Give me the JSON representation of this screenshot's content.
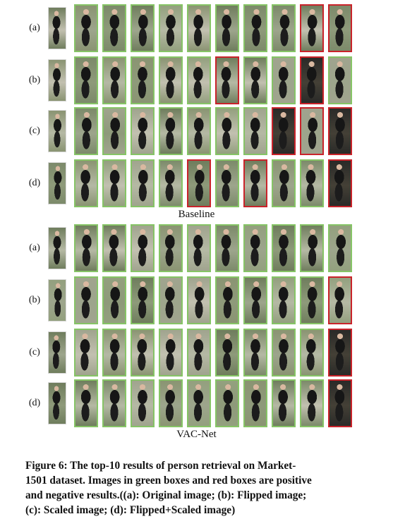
{
  "panels": [
    {
      "title": "Baseline",
      "rows": [
        {
          "label": "(a)",
          "results": [
            "pos",
            "pos",
            "pos",
            "pos",
            "pos",
            "pos",
            "pos",
            "pos",
            "neg",
            "neg"
          ]
        },
        {
          "label": "(b)",
          "results": [
            "pos",
            "pos",
            "pos",
            "pos",
            "pos",
            "neg",
            "pos",
            "pos",
            "neg",
            "pos"
          ]
        },
        {
          "label": "(c)",
          "results": [
            "pos",
            "pos",
            "pos",
            "pos",
            "pos",
            "pos",
            "pos",
            "neg",
            "neg",
            "neg"
          ]
        },
        {
          "label": "(d)",
          "results": [
            "pos",
            "pos",
            "pos",
            "pos",
            "neg",
            "pos",
            "neg",
            "pos",
            "pos",
            "neg"
          ]
        }
      ]
    },
    {
      "title": "VAC-Net",
      "rows": [
        {
          "label": "(a)",
          "results": [
            "pos",
            "pos",
            "pos",
            "pos",
            "pos",
            "pos",
            "pos",
            "pos",
            "pos",
            "pos"
          ]
        },
        {
          "label": "(b)",
          "results": [
            "pos",
            "pos",
            "pos",
            "pos",
            "pos",
            "pos",
            "pos",
            "pos",
            "pos",
            "neg"
          ]
        },
        {
          "label": "(c)",
          "results": [
            "pos",
            "pos",
            "pos",
            "pos",
            "pos",
            "pos",
            "pos",
            "pos",
            "pos",
            "neg"
          ]
        },
        {
          "label": "(d)",
          "results": [
            "pos",
            "pos",
            "pos",
            "pos",
            "pos",
            "pos",
            "pos",
            "pos",
            "pos",
            "neg"
          ]
        }
      ]
    }
  ],
  "caption": {
    "lines": [
      "Figure 6: The top-10 results of person retrieval on Market-",
      "1501 dataset. Images in green boxes and red boxes are positive",
      "and negative results.((a): Original image; (b): Flipped image;",
      "(c): Scaled image; (d): Flipped+Scaled image)"
    ]
  },
  "colors": {
    "positive_border": "#86c466",
    "negative_border": "#c9232a"
  }
}
